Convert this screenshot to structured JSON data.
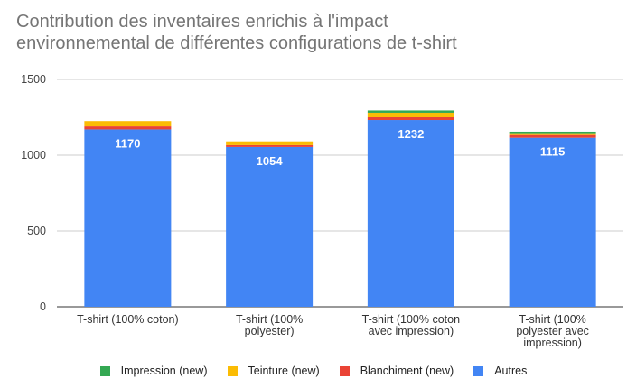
{
  "chart_data": {
    "type": "bar",
    "stacked": true,
    "title": "Contribution des inventaires enrichis à l'impact environnemental de différentes configurations de t-shirt",
    "title_lines": [
      "Contribution des inventaires enrichis à l'impact",
      "environnemental de différentes configurations de t-shirt"
    ],
    "xlabel": "",
    "ylabel": "",
    "ylim": [
      0,
      1500
    ],
    "yticks": [
      0,
      500,
      1000,
      1500
    ],
    "grid": true,
    "legend_position": "bottom",
    "categories": [
      [
        "T-shirt (100% coton)"
      ],
      [
        "T-shirt (100%",
        "polyester)"
      ],
      [
        "T-shirt (100% coton",
        "avec impression)"
      ],
      [
        "T-shirt (100%",
        "polyester avec",
        "impression)"
      ]
    ],
    "series": [
      {
        "name": "Autres",
        "color": "#4285F4",
        "values": [
          1170,
          1054,
          1232,
          1115
        ],
        "data_labels": [
          "1170",
          "1054",
          "1232",
          "1115"
        ]
      },
      {
        "name": "Blanchiment (new)",
        "color": "#EA4335",
        "values": [
          20,
          12,
          18,
          18
        ]
      },
      {
        "name": "Teinture (new)",
        "color": "#FBBC04",
        "values": [
          35,
          25,
          30,
          12
        ]
      },
      {
        "name": "Impression (new)",
        "color": "#34A853",
        "values": [
          0,
          0,
          15,
          10
        ]
      }
    ],
    "legend_order": [
      "Impression (new)",
      "Teinture (new)",
      "Blanchiment (new)",
      "Autres"
    ]
  }
}
